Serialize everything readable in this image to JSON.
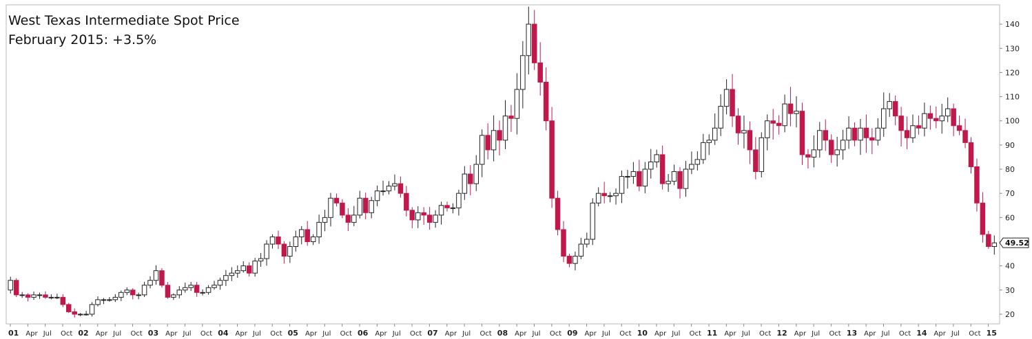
{
  "chart_data": {
    "type": "candlestick",
    "frequency": "monthly",
    "title": "West Texas Intermediate Spot Price",
    "subtitle": "February 2015: +3.5%",
    "last_value_label": "49.52",
    "ylim": [
      16,
      148
    ],
    "y_ticks": [
      20,
      30,
      40,
      50,
      60,
      70,
      80,
      90,
      100,
      110,
      120,
      130,
      140
    ],
    "x_tick_labels": [
      "01",
      "Apr",
      "Jul",
      "Oct",
      "02",
      "Apr",
      "Jul",
      "Oct",
      "03",
      "Apr",
      "Jul",
      "Oct",
      "04",
      "Apr",
      "Jul",
      "Oct",
      "05",
      "Apr",
      "Jul",
      "Oct",
      "06",
      "Apr",
      "Jul",
      "Oct",
      "07",
      "Apr",
      "Jul",
      "Oct",
      "08",
      "Apr",
      "Jul",
      "Oct",
      "09",
      "Apr",
      "Jul",
      "Oct",
      "10",
      "Apr",
      "Jul",
      "Oct",
      "11",
      "Apr",
      "Jul",
      "Oct",
      "12",
      "Apr",
      "Jul",
      "Oct",
      "13",
      "Apr",
      "Jul",
      "Oct",
      "14",
      "Apr",
      "Jul",
      "Oct",
      "15"
    ],
    "up_color": "#ffffff",
    "down_color": "#c0184a",
    "grid": false,
    "ohlc_anchors": [
      [
        "2001-01",
        34
      ],
      [
        "2001-02",
        28
      ],
      [
        "2001-03",
        28
      ],
      [
        "2001-04",
        27
      ],
      [
        "2001-05",
        28
      ],
      [
        "2001-06",
        28
      ],
      [
        "2001-07",
        27
      ],
      [
        "2001-08",
        27
      ],
      [
        "2001-09",
        27
      ],
      [
        "2001-10",
        24
      ],
      [
        "2001-11",
        21
      ],
      [
        "2001-12",
        20
      ],
      [
        "2002-01",
        20
      ],
      [
        "2002-02",
        20
      ],
      [
        "2002-03",
        24
      ],
      [
        "2002-04",
        26
      ],
      [
        "2002-05",
        26
      ],
      [
        "2002-06",
        26
      ],
      [
        "2002-07",
        27
      ],
      [
        "2002-08",
        29
      ],
      [
        "2002-09",
        30
      ],
      [
        "2002-10",
        28
      ],
      [
        "2002-11",
        28
      ],
      [
        "2002-12",
        32
      ],
      [
        "2003-01",
        34
      ],
      [
        "2003-02",
        38
      ],
      [
        "2003-03",
        32
      ],
      [
        "2003-04",
        27
      ],
      [
        "2003-05",
        28
      ],
      [
        "2003-06",
        30
      ],
      [
        "2003-07",
        31
      ],
      [
        "2003-08",
        32
      ],
      [
        "2003-09",
        29
      ],
      [
        "2003-10",
        29
      ],
      [
        "2003-11",
        31
      ],
      [
        "2003-12",
        32
      ],
      [
        "2004-01",
        34
      ],
      [
        "2004-02",
        36
      ],
      [
        "2004-03",
        37
      ],
      [
        "2004-04",
        38
      ],
      [
        "2004-05",
        40
      ],
      [
        "2004-06",
        37
      ],
      [
        "2004-07",
        42
      ],
      [
        "2004-08",
        43
      ],
      [
        "2004-09",
        49
      ],
      [
        "2004-10",
        52
      ],
      [
        "2004-11",
        49
      ],
      [
        "2004-12",
        44
      ],
      [
        "2005-01",
        48
      ],
      [
        "2005-02",
        52
      ],
      [
        "2005-03",
        55
      ],
      [
        "2005-04",
        50
      ],
      [
        "2005-05",
        52
      ],
      [
        "2005-06",
        58
      ],
      [
        "2005-07",
        60
      ],
      [
        "2005-08",
        68
      ],
      [
        "2005-09",
        66
      ],
      [
        "2005-10",
        61
      ],
      [
        "2005-11",
        58
      ],
      [
        "2005-12",
        61
      ],
      [
        "2006-01",
        68
      ],
      [
        "2006-02",
        62
      ],
      [
        "2006-03",
        67
      ],
      [
        "2006-04",
        71
      ],
      [
        "2006-05",
        71
      ],
      [
        "2006-06",
        73
      ],
      [
        "2006-07",
        74
      ],
      [
        "2006-08",
        70
      ],
      [
        "2006-09",
        63
      ],
      [
        "2006-10",
        59
      ],
      [
        "2006-11",
        62
      ],
      [
        "2006-12",
        61
      ],
      [
        "2007-01",
        58
      ],
      [
        "2007-02",
        61
      ],
      [
        "2007-03",
        65
      ],
      [
        "2007-04",
        64
      ],
      [
        "2007-05",
        64
      ],
      [
        "2007-06",
        70
      ],
      [
        "2007-07",
        78
      ],
      [
        "2007-08",
        74
      ],
      [
        "2007-09",
        82
      ],
      [
        "2007-10",
        94
      ],
      [
        "2007-11",
        88
      ],
      [
        "2007-12",
        96
      ],
      [
        "2008-01",
        92
      ],
      [
        "2008-02",
        102
      ],
      [
        "2008-03",
        101
      ],
      [
        "2008-04",
        113
      ],
      [
        "2008-05",
        127
      ],
      [
        "2008-06",
        140
      ],
      [
        "2008-07",
        124
      ],
      [
        "2008-08",
        116
      ],
      [
        "2008-09",
        100
      ],
      [
        "2008-10",
        68
      ],
      [
        "2008-11",
        55
      ],
      [
        "2008-12",
        44
      ],
      [
        "2009-01",
        41
      ],
      [
        "2009-02",
        44
      ],
      [
        "2009-03",
        49
      ],
      [
        "2009-04",
        51
      ],
      [
        "2009-05",
        66
      ],
      [
        "2009-06",
        70
      ],
      [
        "2009-07",
        69
      ],
      [
        "2009-08",
        69
      ],
      [
        "2009-09",
        70
      ],
      [
        "2009-10",
        77
      ],
      [
        "2009-11",
        77
      ],
      [
        "2009-12",
        79
      ],
      [
        "2010-01",
        73
      ],
      [
        "2010-02",
        80
      ],
      [
        "2010-03",
        83
      ],
      [
        "2010-04",
        86
      ],
      [
        "2010-05",
        74
      ],
      [
        "2010-06",
        75
      ],
      [
        "2010-07",
        79
      ],
      [
        "2010-08",
        72
      ],
      [
        "2010-09",
        80
      ],
      [
        "2010-10",
        82
      ],
      [
        "2010-11",
        84
      ],
      [
        "2010-12",
        91
      ],
      [
        "2011-01",
        92
      ],
      [
        "2011-02",
        97
      ],
      [
        "2011-03",
        106
      ],
      [
        "2011-04",
        113
      ],
      [
        "2011-05",
        102
      ],
      [
        "2011-06",
        95
      ],
      [
        "2011-07",
        96
      ],
      [
        "2011-08",
        88
      ],
      [
        "2011-09",
        79
      ],
      [
        "2011-10",
        93
      ],
      [
        "2011-11",
        100
      ],
      [
        "2011-12",
        99
      ],
      [
        "2012-01",
        98
      ],
      [
        "2012-02",
        107
      ],
      [
        "2012-03",
        103
      ],
      [
        "2012-04",
        104
      ],
      [
        "2012-05",
        86
      ],
      [
        "2012-06",
        85
      ],
      [
        "2012-07",
        88
      ],
      [
        "2012-08",
        96
      ],
      [
        "2012-09",
        92
      ],
      [
        "2012-10",
        86
      ],
      [
        "2012-11",
        88
      ],
      [
        "2012-12",
        92
      ],
      [
        "2013-01",
        97
      ],
      [
        "2013-02",
        92
      ],
      [
        "2013-03",
        97
      ],
      [
        "2013-04",
        93
      ],
      [
        "2013-05",
        92
      ],
      [
        "2013-06",
        97
      ],
      [
        "2013-07",
        105
      ],
      [
        "2013-08",
        108
      ],
      [
        "2013-09",
        102
      ],
      [
        "2013-10",
        96
      ],
      [
        "2013-11",
        93
      ],
      [
        "2013-12",
        98
      ],
      [
        "2014-01",
        97
      ],
      [
        "2014-02",
        103
      ],
      [
        "2014-03",
        101
      ],
      [
        "2014-04",
        100
      ],
      [
        "2014-05",
        102
      ],
      [
        "2014-06",
        105
      ],
      [
        "2014-07",
        98
      ],
      [
        "2014-08",
        96
      ],
      [
        "2014-09",
        91
      ],
      [
        "2014-10",
        81
      ],
      [
        "2014-11",
        66
      ],
      [
        "2014-12",
        53
      ],
      [
        "2015-01",
        48
      ],
      [
        "2015-02",
        49.52
      ]
    ]
  }
}
